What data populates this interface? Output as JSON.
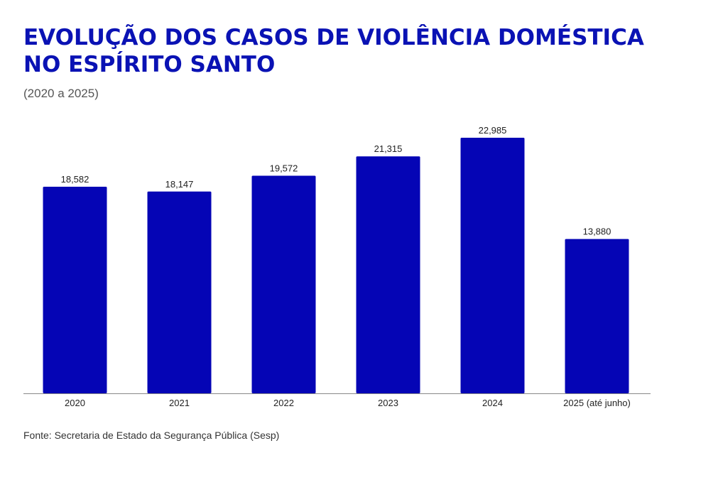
{
  "header": {
    "title": "EVOLUÇÃO DOS CASOS DE VIOLÊNCIA DOMÉSTICA NO ESPÍRITO SANTO",
    "subtitle": "(2020 a 2025)"
  },
  "footer": {
    "source": "Fonte: Secretaria de Estado da Segurança Pública (Sesp)"
  },
  "colors": {
    "bar": "#0505b5",
    "title": "#0a12b4",
    "axis": "#888888",
    "label": "#222222"
  },
  "chart_data": {
    "type": "bar",
    "title": "EVOLUÇÃO DOS CASOS DE VIOLÊNCIA DOMÉSTICA NO ESPÍRITO SANTO",
    "subtitle": "(2020 a 2025)",
    "xlabel": "",
    "ylabel": "",
    "categories": [
      "2020",
      "2021",
      "2022",
      "2023",
      "2024",
      "2025 (até junho)"
    ],
    "values": [
      18582,
      18147,
      19572,
      21315,
      22985,
      13880
    ],
    "value_labels": [
      "18,582",
      "18,147",
      "19,572",
      "21,315",
      "22,985",
      "13,880"
    ],
    "ylim": [
      0,
      22985
    ],
    "grid": false,
    "legend": "none"
  }
}
